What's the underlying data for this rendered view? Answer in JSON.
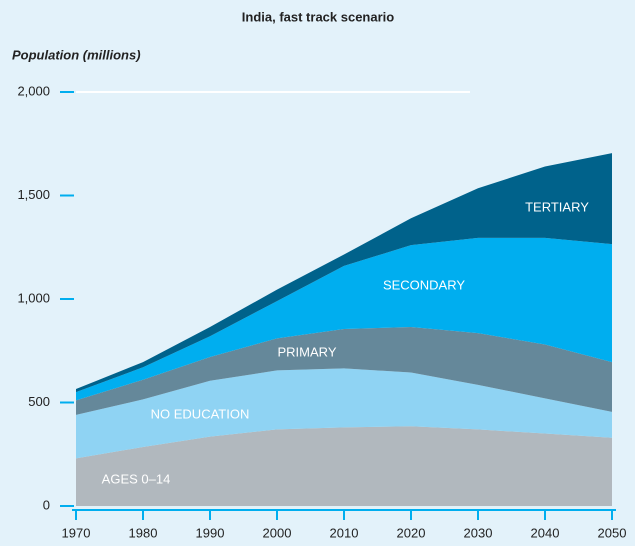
{
  "chart_data": {
    "type": "stacked_area",
    "title": "India, fast track scenario",
    "y_label": "Population (millions)",
    "x": [
      1970,
      1980,
      1990,
      2000,
      2010,
      2020,
      2030,
      2040,
      2050
    ],
    "series": [
      {
        "name": "AGES 0–14",
        "color": "#b1b8be",
        "values": [
          230,
          285,
          335,
          370,
          380,
          385,
          370,
          350,
          330
        ]
      },
      {
        "name": "NO EDUCATION",
        "color": "#8fd3f3",
        "values": [
          210,
          230,
          270,
          285,
          285,
          260,
          215,
          170,
          125
        ]
      },
      {
        "name": "PRIMARY",
        "color": "#65889a",
        "values": [
          70,
          95,
          115,
          155,
          190,
          220,
          250,
          260,
          240
        ]
      },
      {
        "name": "SECONDARY",
        "color": "#00aeef",
        "values": [
          40,
          60,
          100,
          180,
          305,
          395,
          460,
          515,
          570
        ]
      },
      {
        "name": "TERTIARY",
        "color": "#00628b",
        "values": [
          15,
          25,
          45,
          55,
          55,
          130,
          240,
          345,
          440
        ]
      }
    ],
    "xlim": [
      1970,
      2050
    ],
    "xticks": [
      1970,
      1980,
      1990,
      2000,
      2010,
      2020,
      2030,
      2040,
      2050
    ],
    "ylim": [
      0,
      2000
    ],
    "yticks": [
      0,
      500,
      {
        "value": 1000,
        "label": "1,000"
      },
      {
        "value": 1500,
        "label": "1,500"
      },
      {
        "value": 2000,
        "label": "2,000"
      }
    ]
  }
}
